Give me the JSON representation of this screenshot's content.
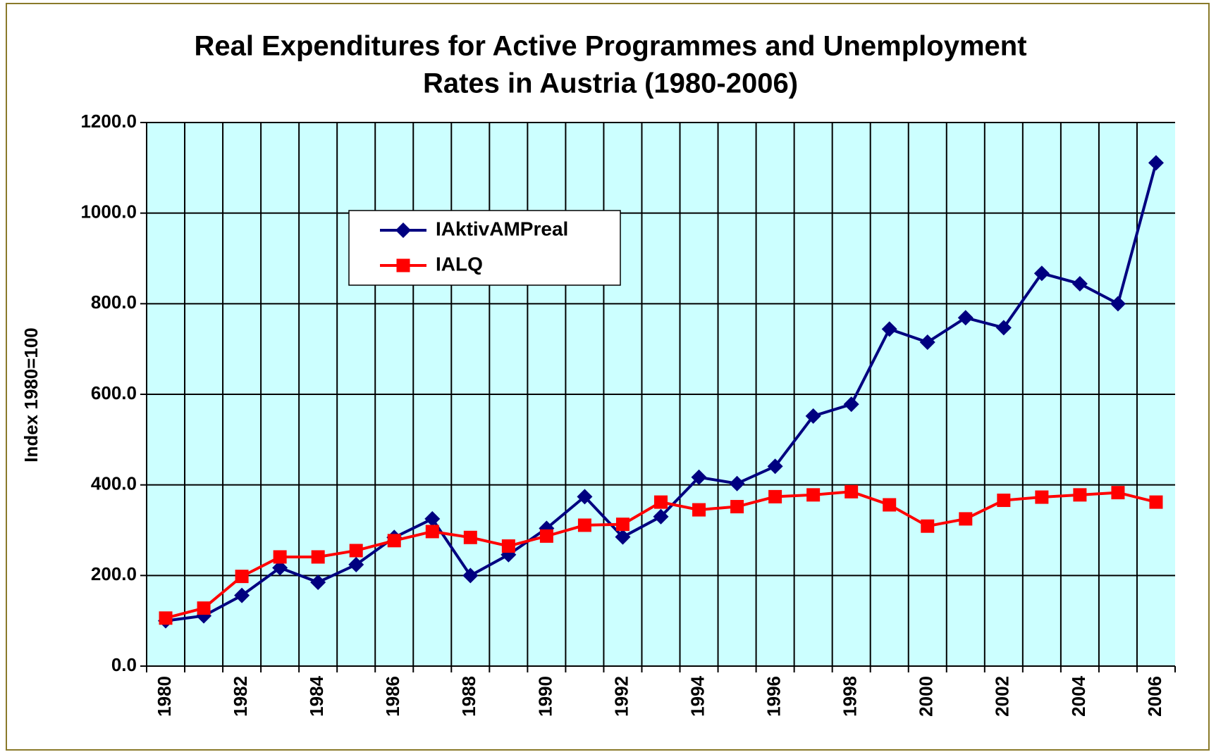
{
  "chart_data": {
    "type": "line",
    "title": [
      "Real Expenditures for Active Programmes and Unemployment",
      "Rates in Austria (1980-2006)"
    ],
    "y_label": "Index 1980=100",
    "categories": [
      "1980",
      null,
      "1982",
      null,
      "1984",
      null,
      "1986",
      null,
      "1988",
      null,
      "1990",
      null,
      "1992",
      null,
      "1994",
      null,
      "1996",
      null,
      "1998",
      null,
      "2000",
      null,
      "2002",
      null,
      "2004",
      null,
      "2006"
    ],
    "series": [
      {
        "name": "IAktivAMPreal",
        "color": "#000080",
        "marker": "diamond",
        "values": [
          100,
          111,
          156,
          217,
          185,
          224,
          284,
          325,
          200,
          246,
          304,
          374,
          285,
          330,
          417,
          403,
          441,
          552,
          578,
          744,
          715,
          769,
          747,
          867,
          844,
          800,
          1111
        ]
      },
      {
        "name": "IALQ",
        "color": "#ff0000",
        "marker": "square",
        "values": [
          106,
          128,
          198,
          241,
          241,
          255,
          277,
          297,
          284,
          265,
          287,
          311,
          313,
          362,
          345,
          352,
          374,
          378,
          385,
          356,
          309,
          325,
          366,
          373,
          378,
          383,
          362
        ]
      }
    ],
    "ylim": [
      0,
      1200
    ],
    "yticks": [
      {
        "value": 0,
        "label": "0.0"
      },
      {
        "value": 200,
        "label": "200.0"
      },
      {
        "value": 400,
        "label": "400.0"
      },
      {
        "value": 600,
        "label": "600.0"
      },
      {
        "value": 800,
        "label": "800.0"
      },
      {
        "value": 1000,
        "label": "1000.0"
      },
      {
        "value": 1200,
        "label": "1200.0"
      }
    ],
    "grid": true,
    "plot_background": "#ccffff",
    "legend": "upper left"
  }
}
